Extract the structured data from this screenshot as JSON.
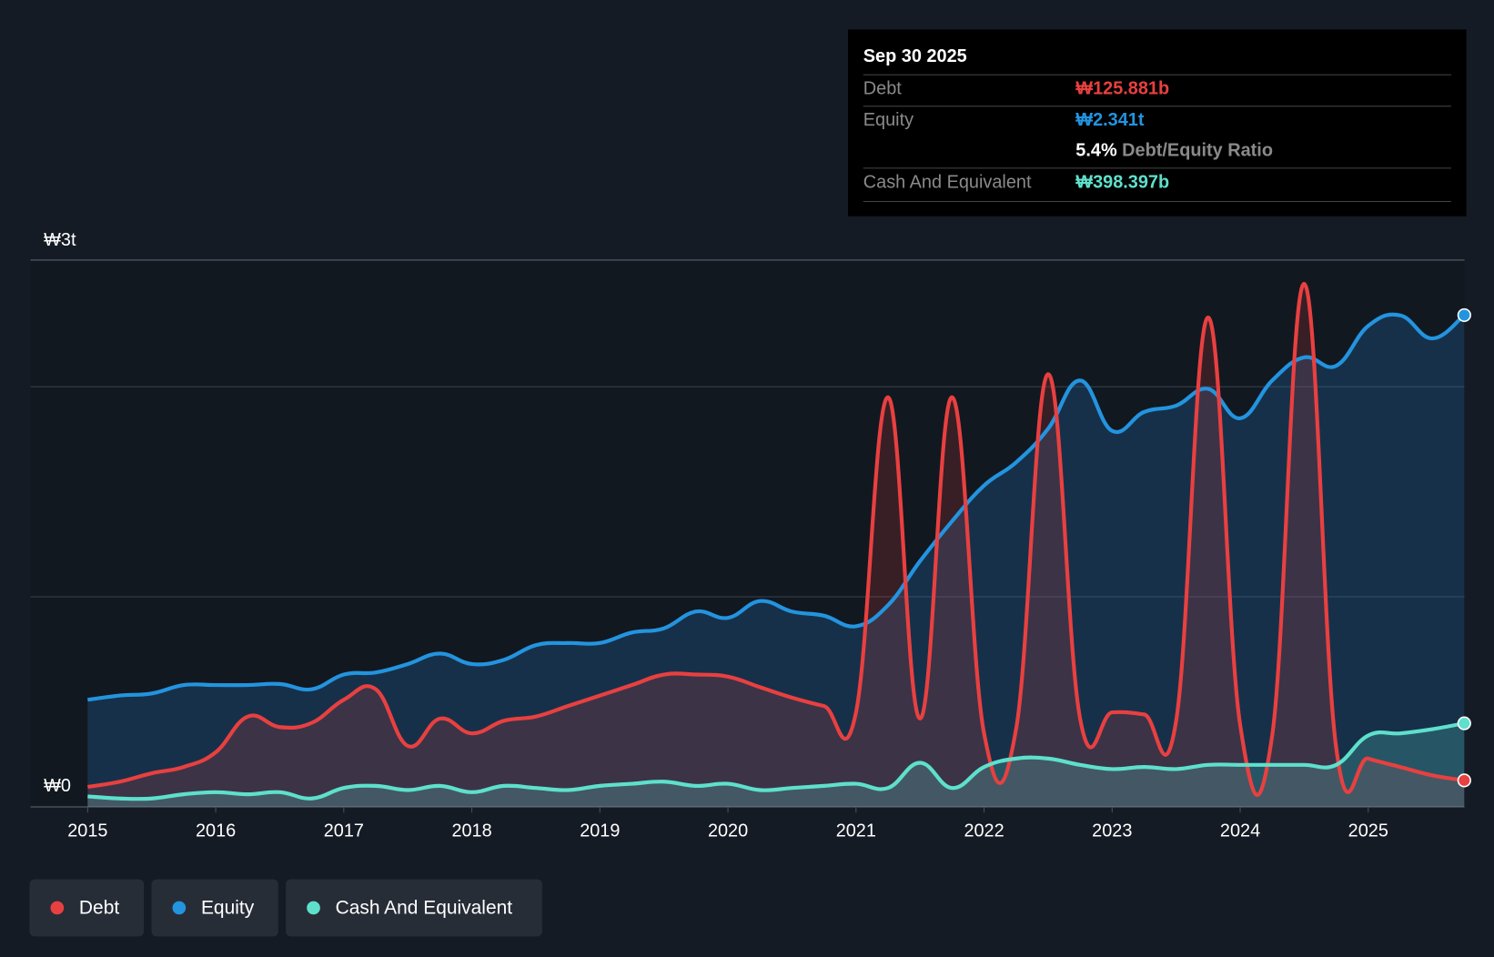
{
  "tooltip": {
    "date": "Sep 30 2025",
    "debt_label": "Debt",
    "debt_value": "₩125.881b",
    "equity_label": "Equity",
    "equity_value": "₩2.341t",
    "ratio_value": "5.4%",
    "ratio_label": "Debt/Equity Ratio",
    "cash_label": "Cash And Equivalent",
    "cash_value": "₩398.397b"
  },
  "legend": [
    {
      "label": "Debt",
      "color": "#e84040"
    },
    {
      "label": "Equity",
      "color": "#2394df"
    },
    {
      "label": "Cash And Equivalent",
      "color": "#5ee0cc"
    }
  ],
  "chart_data": {
    "type": "area",
    "title": "",
    "xlabel": "",
    "ylabel": "",
    "y_unit": "trillion KRW",
    "ylim": [
      0,
      2.6
    ],
    "y_tick_labels": [
      "₩0",
      "₩3t"
    ],
    "x_ticks": [
      "2015",
      "2016",
      "2017",
      "2018",
      "2019",
      "2020",
      "2021",
      "2022",
      "2023",
      "2024",
      "2025"
    ],
    "x": [
      2015,
      2015.25,
      2015.5,
      2015.75,
      2016,
      2016.25,
      2016.5,
      2016.75,
      2017,
      2017.25,
      2017.5,
      2017.75,
      2018,
      2018.25,
      2018.5,
      2018.75,
      2019,
      2019.25,
      2019.5,
      2019.75,
      2020,
      2020.25,
      2020.5,
      2020.75,
      2021,
      2021.25,
      2021.5,
      2021.75,
      2022,
      2022.25,
      2022.5,
      2022.75,
      2023,
      2023.25,
      2023.5,
      2023.75,
      2024,
      2024.25,
      2024.5,
      2024.75,
      2025,
      2025.25,
      2025.5,
      2025.75
    ],
    "series": [
      {
        "name": "Equity",
        "color": "#2394df",
        "values": [
          0.51,
          0.53,
          0.54,
          0.58,
          0.58,
          0.58,
          0.585,
          0.56,
          0.63,
          0.64,
          0.68,
          0.73,
          0.68,
          0.7,
          0.77,
          0.78,
          0.78,
          0.83,
          0.85,
          0.93,
          0.9,
          0.98,
          0.93,
          0.91,
          0.86,
          0.96,
          1.17,
          1.36,
          1.53,
          1.64,
          1.8,
          2.03,
          1.79,
          1.88,
          1.91,
          1.99,
          1.85,
          2.03,
          2.14,
          2.1,
          2.29,
          2.34,
          2.23,
          2.341
        ]
      },
      {
        "name": "Debt",
        "color": "#e84040",
        "values": [
          0.095,
          0.12,
          0.16,
          0.19,
          0.26,
          0.43,
          0.38,
          0.4,
          0.51,
          0.56,
          0.29,
          0.42,
          0.35,
          0.41,
          0.43,
          0.48,
          0.53,
          0.58,
          0.63,
          0.63,
          0.62,
          0.57,
          0.52,
          0.48,
          0.45,
          1.95,
          0.42,
          1.95,
          0.35,
          0.37,
          2.06,
          0.42,
          0.45,
          0.44,
          0.41,
          2.33,
          0.39,
          0.34,
          2.49,
          0.28,
          0.23,
          0.19,
          0.15,
          0.126
        ]
      },
      {
        "name": "Cash And Equivalent",
        "color": "#5ee0cc",
        "values": [
          0.05,
          0.04,
          0.04,
          0.06,
          0.07,
          0.06,
          0.07,
          0.04,
          0.09,
          0.1,
          0.08,
          0.1,
          0.07,
          0.1,
          0.09,
          0.08,
          0.1,
          0.11,
          0.12,
          0.1,
          0.11,
          0.08,
          0.09,
          0.1,
          0.11,
          0.09,
          0.21,
          0.09,
          0.19,
          0.23,
          0.23,
          0.2,
          0.18,
          0.19,
          0.18,
          0.2,
          0.2,
          0.2,
          0.2,
          0.2,
          0.34,
          0.35,
          0.37,
          0.398
        ]
      }
    ],
    "grid": true,
    "legend_position": "bottom-left"
  }
}
